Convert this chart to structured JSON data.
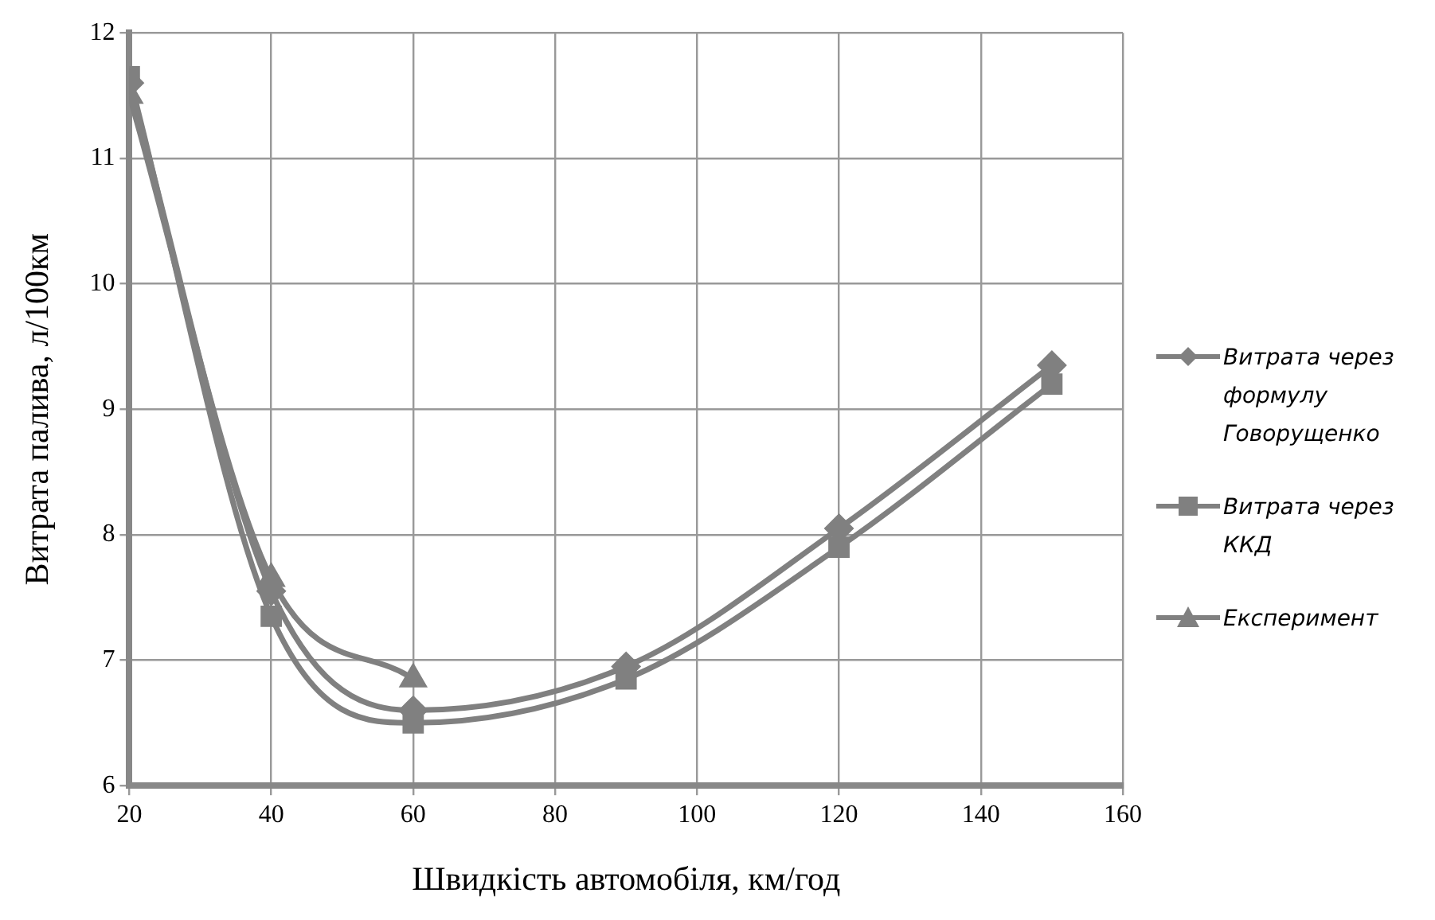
{
  "chart_data": {
    "type": "line",
    "xlabel": "Швидкість автомобіля, км/год",
    "ylabel": "Витрата палива, л/100км",
    "x": [
      20,
      40,
      60,
      90,
      120,
      150
    ],
    "series": [
      {
        "name": "Витрата через формулу Говорущенко",
        "color": "#808080",
        "marker": "diamond",
        "values": [
          11.6,
          7.55,
          6.6,
          6.95,
          8.05,
          9.35
        ]
      },
      {
        "name": "Витрата через ККД",
        "color": "#808080",
        "marker": "square",
        "values": [
          11.65,
          7.35,
          6.5,
          6.85,
          7.9,
          9.2
        ]
      },
      {
        "name": "Експеримент",
        "color": "#808080",
        "marker": "triangle",
        "x": [
          20,
          40,
          60
        ],
        "values": [
          11.5,
          7.65,
          6.85
        ]
      }
    ],
    "xlim": [
      20,
      160
    ],
    "xticks": [
      20,
      40,
      60,
      80,
      100,
      120,
      140,
      160
    ],
    "ylim": [
      6,
      12
    ],
    "yticks": [
      6,
      7,
      8,
      9,
      10,
      11,
      12
    ],
    "grid": true,
    "legend": "right"
  }
}
